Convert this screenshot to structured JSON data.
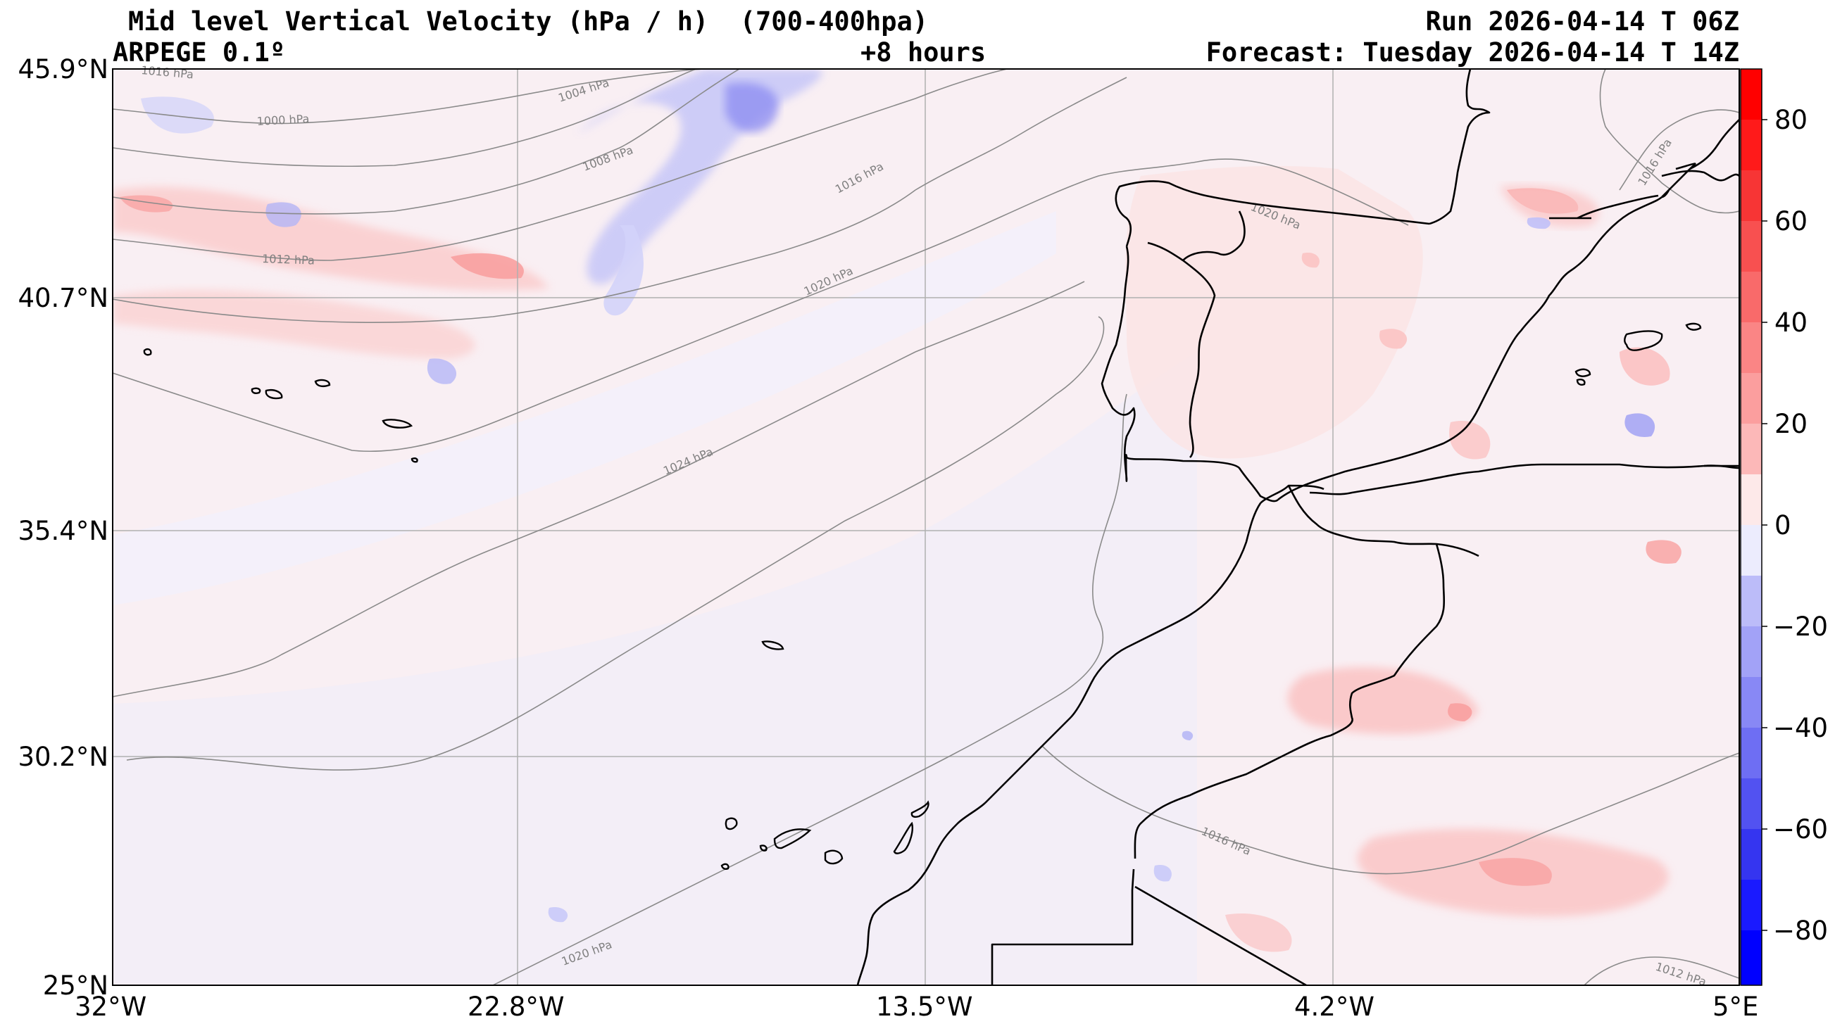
{
  "header": {
    "title_left": "Mid level Vertical Velocity (hPa / h)  (700-400hpa)",
    "title_right": "Run 2026-04-14 T 06Z",
    "model": "ARPEGE 0.1º",
    "lead_time": "+8 hours",
    "forecast": "Forecast: Tuesday 2026-04-14 T 14Z"
  },
  "axes": {
    "lat_labels": [
      "45.9°N",
      "40.7°N",
      "35.4°N",
      "30.2°N",
      "25°N"
    ],
    "lon_labels": [
      "32°W",
      "22.8°W",
      "13.5°W",
      "4.2°W",
      "5°E"
    ]
  },
  "colorbar": {
    "ticks": [
      "80",
      "60",
      "40",
      "20",
      "0",
      "−20",
      "−40",
      "−60",
      "−80"
    ],
    "range": [
      -90,
      90
    ],
    "colors_positive": [
      "#fde9e9",
      "#fdd2d2",
      "#fcb8b8",
      "#fb9e9e",
      "#fa8585",
      "#f96a6a",
      "#f85050",
      "#f73535",
      "#ff1a1a",
      "#ff0000"
    ],
    "colors_negative": [
      "#ececfd",
      "#d6d6fb",
      "#bcbcf9",
      "#a2a2f7",
      "#8888f5",
      "#6e6ef3",
      "#5252f1",
      "#3535f0",
      "#1a1aff",
      "#0000ff"
    ]
  },
  "isobars": [
    {
      "label": "1000 hPa"
    },
    {
      "label": "1004 hPa"
    },
    {
      "label": "1008 hPa"
    },
    {
      "label": "1012 hPa"
    },
    {
      "label": "1016 hPa"
    },
    {
      "label": "1020 hPa"
    },
    {
      "label": "1024 hPa"
    },
    {
      "label": "1020 hPa"
    },
    {
      "label": "1016 hPa"
    },
    {
      "label": "1020 hPa"
    },
    {
      "label": "1016 hPa"
    },
    {
      "label": "1012 hPa"
    },
    {
      "label": "1016 hPa"
    }
  ]
}
